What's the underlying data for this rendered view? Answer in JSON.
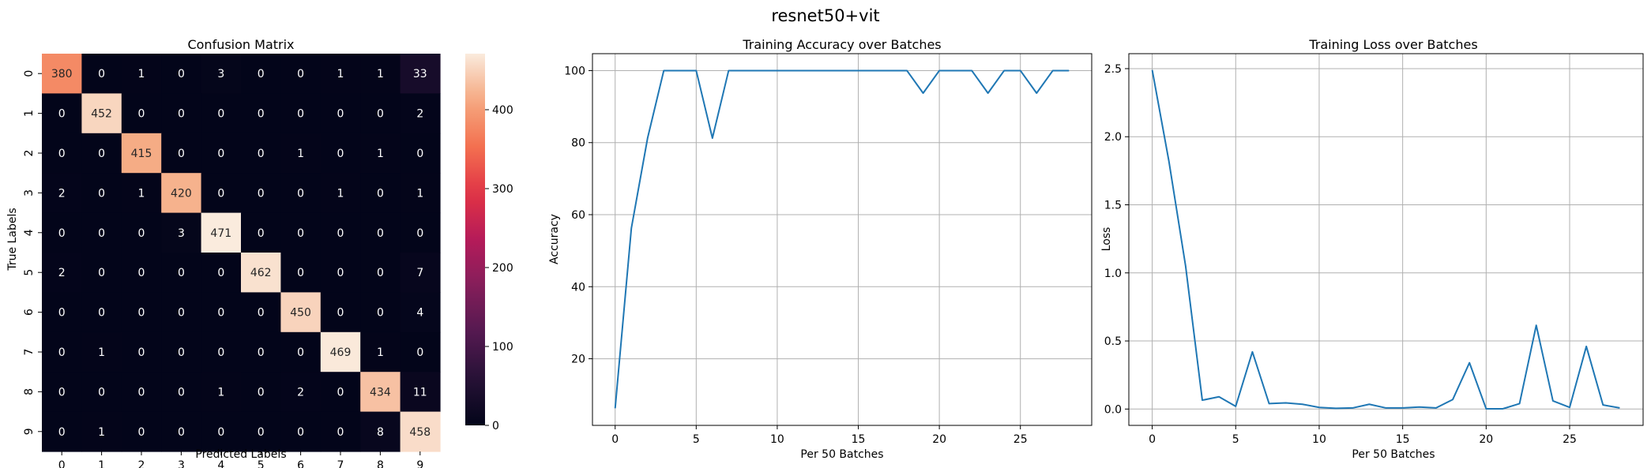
{
  "suptitle": "resnet50+vit",
  "colors": {
    "line": "#1f77b4",
    "grid": "#b0b0b0",
    "axis": "#000000",
    "text_dark": "#262626",
    "text_light": "#ffffff"
  },
  "chart_data": [
    {
      "type": "heatmap",
      "title": "Confusion Matrix",
      "xlabel": "Predicted Labels",
      "ylabel": "True Labels",
      "x_categories": [
        "0",
        "1",
        "2",
        "3",
        "4",
        "5",
        "6",
        "7",
        "8",
        "9"
      ],
      "y_categories": [
        "0",
        "1",
        "2",
        "3",
        "4",
        "5",
        "6",
        "7",
        "8",
        "9"
      ],
      "values": [
        [
          380,
          0,
          1,
          0,
          3,
          0,
          0,
          1,
          1,
          33
        ],
        [
          0,
          452,
          0,
          0,
          0,
          0,
          0,
          0,
          0,
          2
        ],
        [
          0,
          0,
          415,
          0,
          0,
          0,
          1,
          0,
          1,
          0
        ],
        [
          2,
          0,
          1,
          420,
          0,
          0,
          0,
          1,
          0,
          1
        ],
        [
          0,
          0,
          0,
          3,
          471,
          0,
          0,
          0,
          0,
          0
        ],
        [
          2,
          0,
          0,
          0,
          0,
          462,
          0,
          0,
          0,
          7
        ],
        [
          0,
          0,
          0,
          0,
          0,
          0,
          450,
          0,
          0,
          4
        ],
        [
          0,
          1,
          0,
          0,
          0,
          0,
          0,
          469,
          1,
          0
        ],
        [
          0,
          0,
          0,
          0,
          1,
          0,
          2,
          0,
          434,
          11
        ],
        [
          0,
          1,
          0,
          0,
          0,
          0,
          0,
          0,
          8,
          458
        ]
      ],
      "colorbar": {
        "min": 0,
        "max": 471,
        "ticks": [
          0,
          100,
          200,
          300,
          400
        ],
        "colormap": "rocket"
      }
    },
    {
      "type": "line",
      "title": "Training Accuracy over Batches",
      "xlabel": "Per 50 Batches",
      "ylabel": "Accuracy",
      "x": [
        0,
        1,
        2,
        3,
        4,
        5,
        6,
        7,
        8,
        9,
        10,
        11,
        12,
        13,
        14,
        15,
        16,
        17,
        18,
        19,
        20,
        21,
        22,
        23,
        24,
        25,
        26,
        27,
        28
      ],
      "y": [
        6.25,
        56.25,
        81.25,
        100,
        100,
        100,
        81.25,
        100,
        100,
        100,
        100,
        100,
        100,
        100,
        100,
        100,
        100,
        100,
        100,
        93.75,
        100,
        100,
        100,
        93.75,
        100,
        100,
        93.75,
        100,
        100
      ],
      "xlim": [
        -1.4,
        29.4
      ],
      "ylim": [
        1.5,
        104.7
      ],
      "xticks": [
        0,
        5,
        10,
        15,
        20,
        25
      ],
      "yticks": [
        20,
        40,
        60,
        80,
        100
      ],
      "grid": true
    },
    {
      "type": "line",
      "title": "Training Loss over Batches",
      "xlabel": "Per 50 Batches",
      "ylabel": "Loss",
      "x": [
        0,
        1,
        2,
        3,
        4,
        5,
        6,
        7,
        8,
        9,
        10,
        11,
        12,
        13,
        14,
        15,
        16,
        17,
        18,
        19,
        20,
        21,
        22,
        23,
        24,
        25,
        26,
        27,
        28
      ],
      "y": [
        2.49,
        1.82,
        1.05,
        0.065,
        0.09,
        0.02,
        0.42,
        0.04,
        0.045,
        0.035,
        0.012,
        0.005,
        0.008,
        0.035,
        0.008,
        0.008,
        0.015,
        0.008,
        0.07,
        0.34,
        0.002,
        0.002,
        0.04,
        0.615,
        0.06,
        0.012,
        0.46,
        0.03,
        0.008
      ],
      "xlim": [
        -1.4,
        29.4
      ],
      "ylim": [
        -0.12,
        2.61
      ],
      "xticks": [
        0,
        5,
        10,
        15,
        20,
        25
      ],
      "yticks": [
        0.0,
        0.5,
        1.0,
        1.5,
        2.0,
        2.5
      ],
      "yticklabels": [
        "0.0",
        "0.5",
        "1.0",
        "1.5",
        "2.0",
        "2.5"
      ],
      "grid": true
    }
  ]
}
